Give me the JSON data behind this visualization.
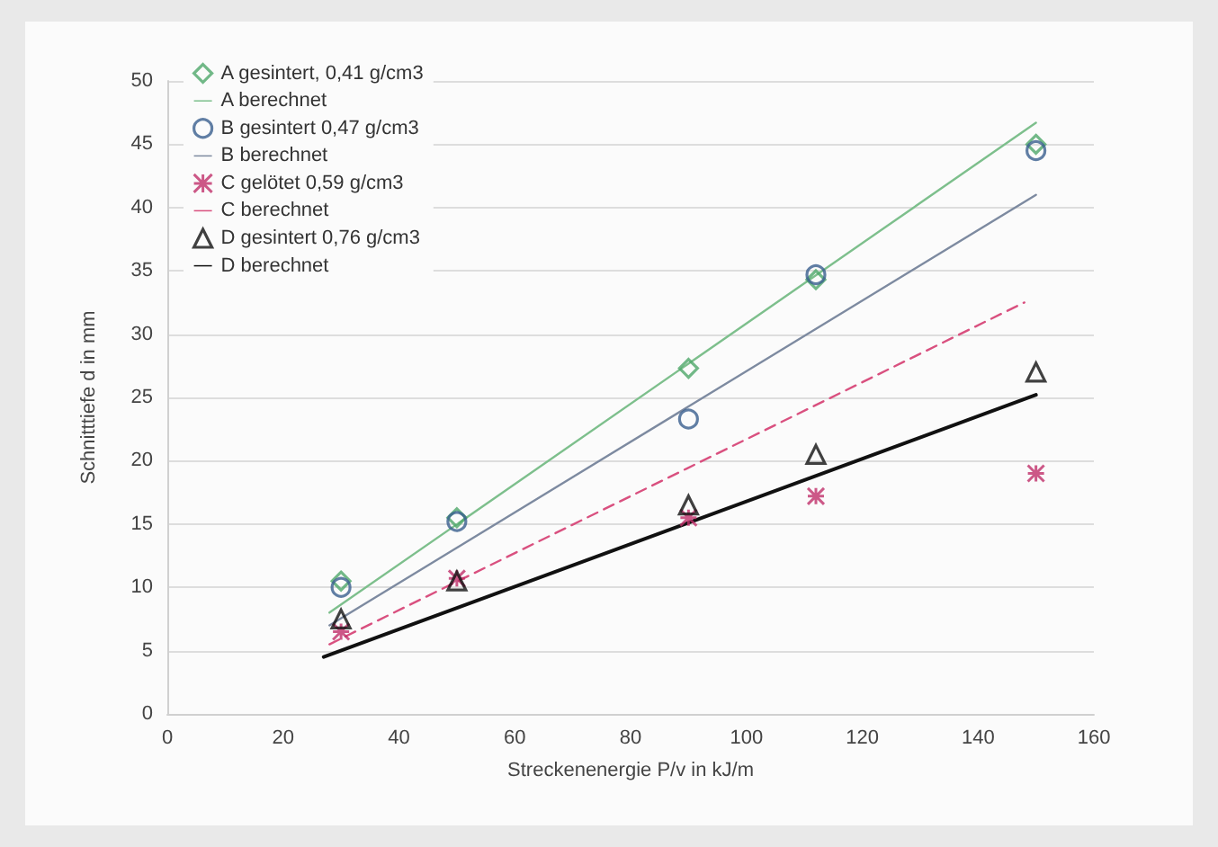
{
  "chart_data": {
    "type": "scatter",
    "xlabel": "Streckenenergie P/v in kJ/m",
    "ylabel": "Schnitttiefe d in mm",
    "xlim": [
      0,
      160
    ],
    "xticks": [
      0,
      20,
      40,
      60,
      80,
      100,
      120,
      140,
      160
    ],
    "ylim": [
      0,
      50
    ],
    "yticks": [
      0,
      5,
      10,
      15,
      20,
      25,
      30,
      35,
      40,
      45,
      50
    ],
    "grid": "y",
    "legend": "top left",
    "series": [
      {
        "name": "A gesintert, 0,41 g/cm3",
        "marker": "diamond",
        "color": "#4fa86a",
        "x": [
          30,
          50,
          90,
          112,
          150
        ],
        "values": [
          10.5,
          15.5,
          27.3,
          34.3,
          45
        ]
      },
      {
        "name": "A berechnet",
        "type": "line",
        "marker": "none",
        "line_style": "solid",
        "color": "#7dbf8c",
        "x": [
          28,
          150
        ],
        "values": [
          8,
          46.7
        ]
      },
      {
        "name": "B gesintert 0,47 g/cm3",
        "marker": "circle",
        "color": "#3a5f8f",
        "x": [
          30,
          50,
          90,
          112,
          150
        ],
        "values": [
          10,
          15.2,
          23.3,
          34.7,
          44.5
        ]
      },
      {
        "name": "B berechnet",
        "type": "line",
        "marker": "none",
        "line_style": "solid",
        "color": "#7d8aa0",
        "x": [
          28,
          150
        ],
        "values": [
          7,
          41
        ]
      },
      {
        "name": "C gelötet 0,59 g/cm3",
        "marker": "cross",
        "color": "#c0306a",
        "x": [
          30,
          50,
          90,
          112,
          150
        ],
        "values": [
          6.5,
          10.7,
          15.5,
          17.2,
          19
        ]
      },
      {
        "name": "C berechnet",
        "type": "line",
        "marker": "none",
        "line_style": "dashed",
        "color": "#d9507f",
        "x": [
          28,
          148
        ],
        "values": [
          5.5,
          32.5
        ]
      },
      {
        "name": "D gesintert 0,76 g/cm3",
        "marker": "triangle",
        "color": "#111111",
        "x": [
          30,
          50,
          90,
          112,
          150
        ],
        "values": [
          7.5,
          10.5,
          16.5,
          20.5,
          27
        ]
      },
      {
        "name": "D berechnet",
        "type": "line",
        "marker": "none",
        "line_style": "solid",
        "color": "#111111",
        "x": [
          27,
          150
        ],
        "values": [
          4.5,
          25.2
        ]
      }
    ]
  }
}
